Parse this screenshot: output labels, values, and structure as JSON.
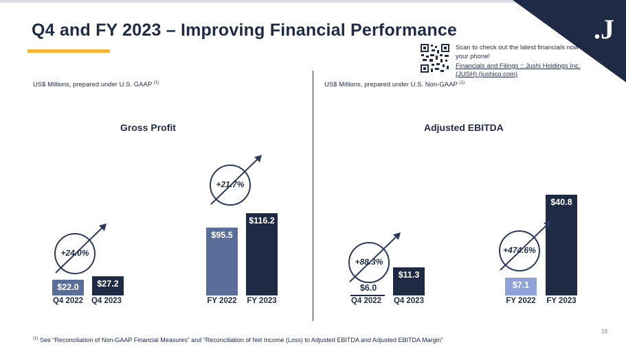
{
  "slide": {
    "title": "Q4 and FY 2023 – Improving Financial Performance",
    "page_number": "19",
    "brand_mark": ".J",
    "colors": {
      "navy": "#1f2a44",
      "steel": "#5b6e9a",
      "periwinkle": "#8fa3d8",
      "gold": "#f2b534",
      "pale_blue": "#dde3ee"
    }
  },
  "qr_block": {
    "scan_text": "Scan to check out the latest financials now on your phone!",
    "link_text": "Financials and Filings :: Jushi Holdings Inc. (JUSH) (jushico.com)"
  },
  "left_panel": {
    "caption": "US$ Millions, prepared under U.S. GAAP",
    "caption_ref": "(1)"
  },
  "right_panel": {
    "caption": "US$ Millions, prepared under U.S. Non-GAAP",
    "caption_ref": "(1)"
  },
  "footnote": {
    "ref": "(1)",
    "text": "See “Reconciliation of Non-GAAP Financial Measures” and “Reconciliation of Net Income (Loss) to Adjusted EBITDA and Adjusted EBITDA Margin”"
  },
  "chart_data": [
    {
      "type": "bar",
      "title": "Gross Profit",
      "unit": "US$ Millions",
      "categories": [
        "Q4 2022",
        "Q4 2023",
        "FY 2022",
        "FY 2023"
      ],
      "values": [
        22.0,
        27.2,
        95.5,
        116.2
      ],
      "value_labels": [
        "$22.0",
        "$27.2",
        "$95.5",
        "$116.2"
      ],
      "growth": [
        {
          "pair": [
            "Q4 2022",
            "Q4 2023"
          ],
          "label": "+24.0%"
        },
        {
          "pair": [
            "FY 2022",
            "FY 2023"
          ],
          "label": "+21.7%"
        }
      ]
    },
    {
      "type": "bar",
      "title": "Adjusted EBITDA",
      "unit": "US$ Millions",
      "categories": [
        "Q4 2022",
        "Q4 2023",
        "FY 2022",
        "FY 2023"
      ],
      "values": [
        6.0,
        11.3,
        7.1,
        40.8
      ],
      "value_labels": [
        "$6.0",
        "$11.3",
        "$7.1",
        "$40.8"
      ],
      "growth": [
        {
          "pair": [
            "Q4 2022",
            "Q4 2023"
          ],
          "label": "+88.3%"
        },
        {
          "pair": [
            "FY 2022",
            "FY 2023"
          ],
          "label": "+474.6%"
        }
      ]
    }
  ]
}
